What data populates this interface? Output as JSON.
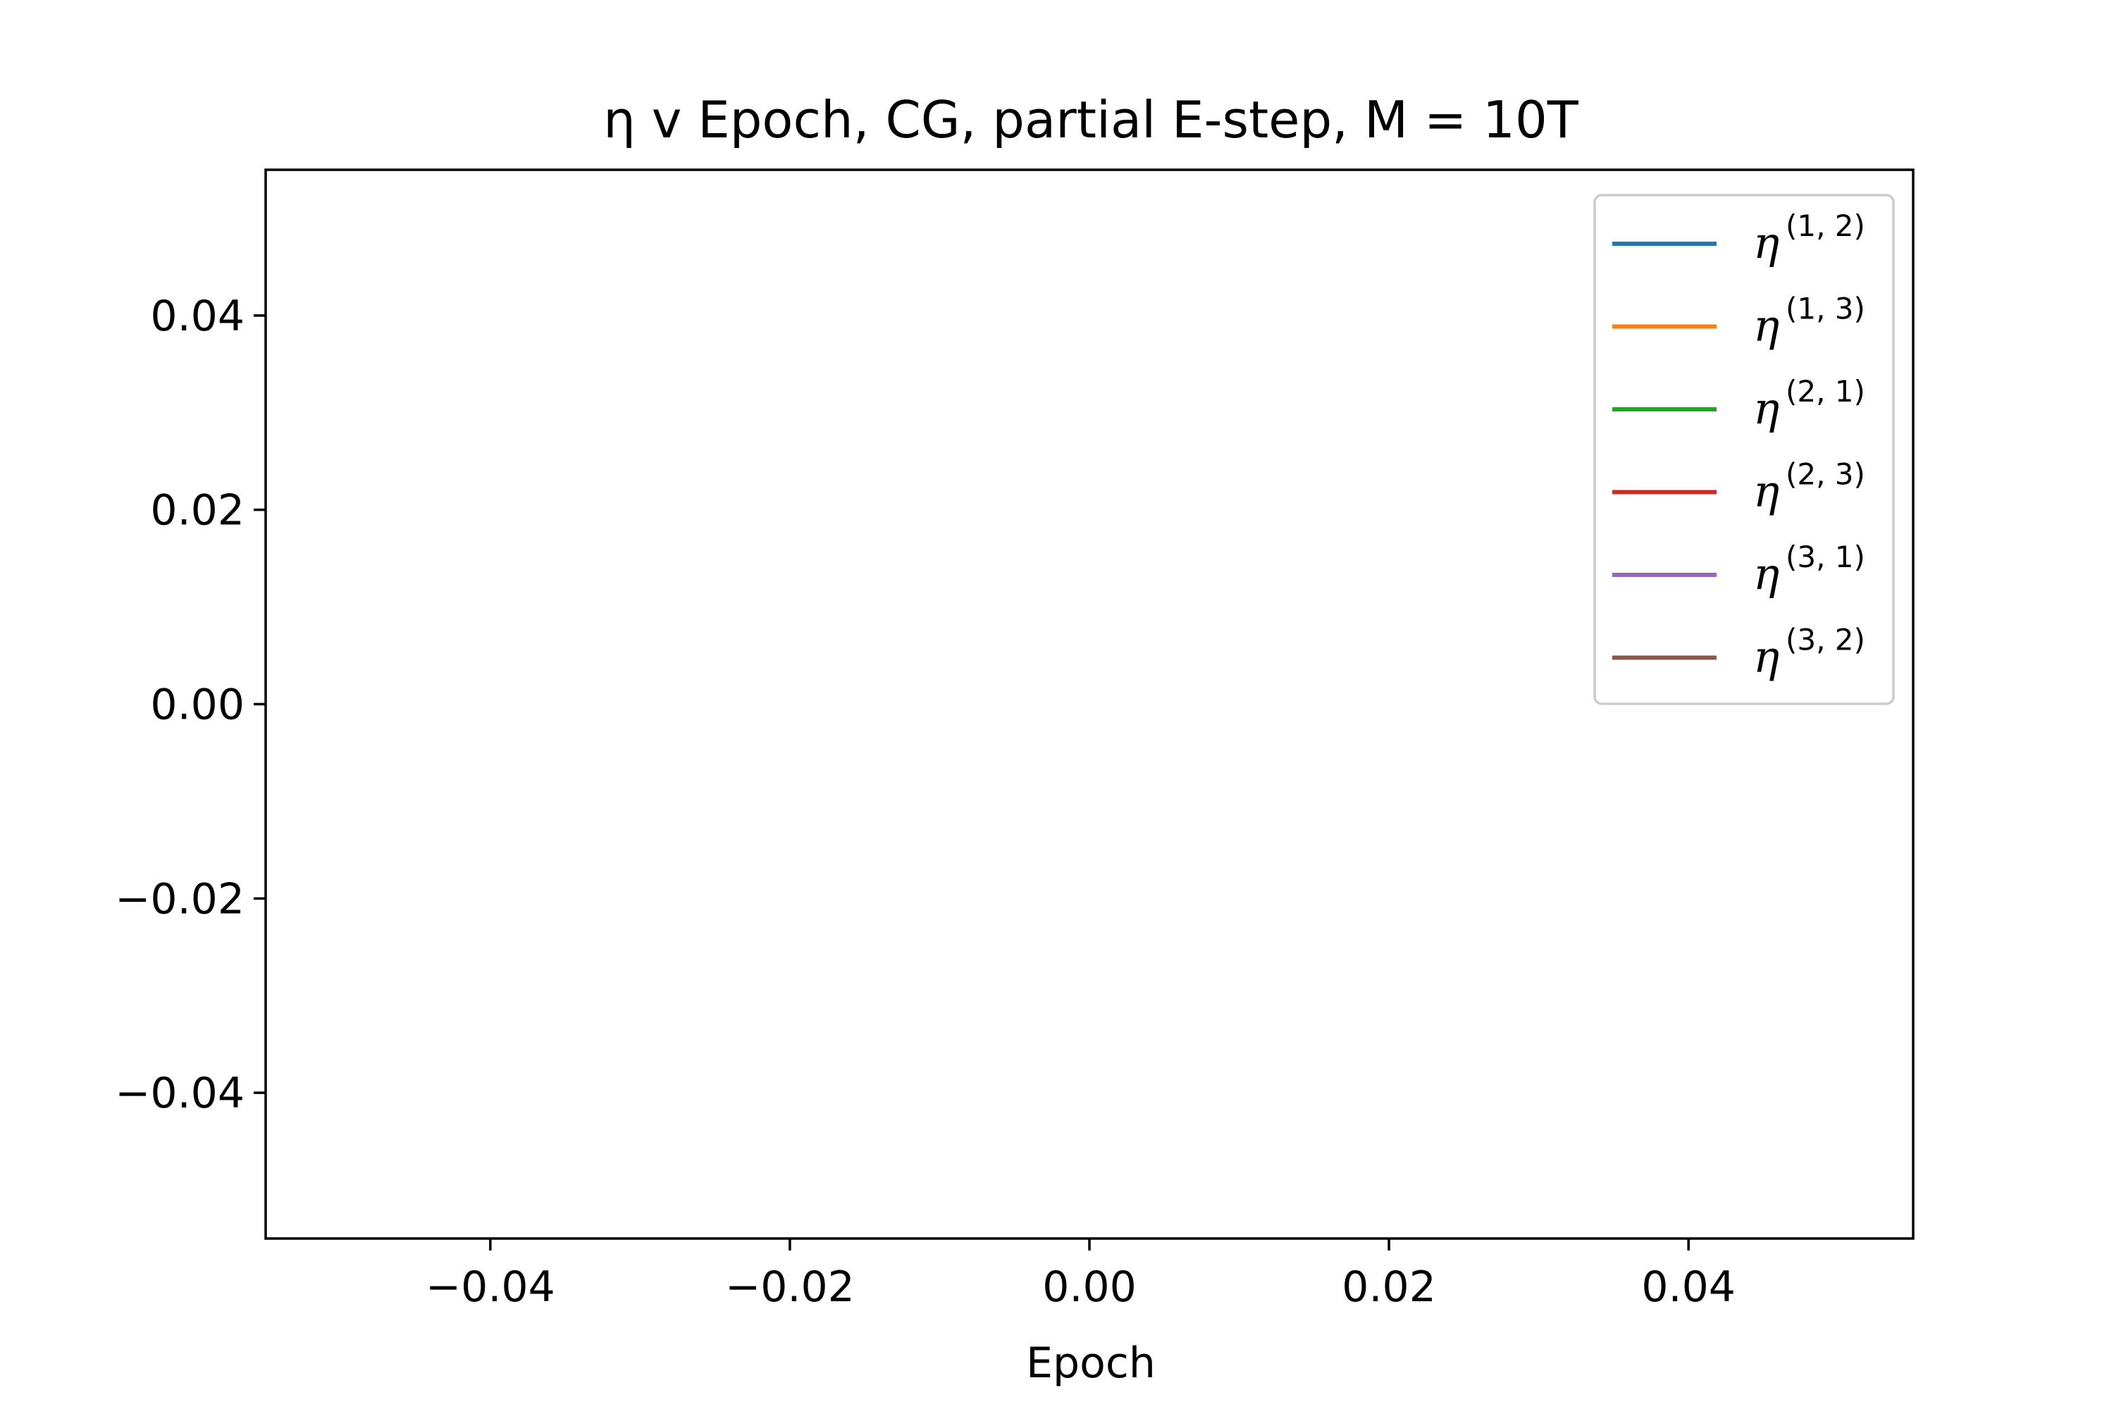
{
  "chart_data": {
    "type": "line",
    "title": "η v Epoch, CG, partial E-step, M = 10T",
    "xlabel": "Epoch",
    "ylabel": "",
    "xlim": [
      -0.055,
      0.055
    ],
    "ylim": [
      -0.055,
      0.055
    ],
    "x_ticks": [
      -0.04,
      -0.02,
      0.0,
      0.02,
      0.04
    ],
    "x_tick_labels": [
      "−0.04",
      "−0.02",
      "0.00",
      "0.02",
      "0.04"
    ],
    "y_ticks": [
      -0.04,
      -0.02,
      0.0,
      0.02,
      0.04
    ],
    "y_tick_labels": [
      "−0.04",
      "−0.02",
      "0.00",
      "0.02",
      "0.04"
    ],
    "grid": false,
    "legend_position": "top-right",
    "series": [
      {
        "name_base": "η",
        "name_sup": "(1, 2)",
        "color": "#1f77b4",
        "x": [],
        "y": []
      },
      {
        "name_base": "η",
        "name_sup": "(1, 3)",
        "color": "#ff7f0e",
        "x": [],
        "y": []
      },
      {
        "name_base": "η",
        "name_sup": "(2, 1)",
        "color": "#2ca02c",
        "x": [],
        "y": []
      },
      {
        "name_base": "η",
        "name_sup": "(2, 3)",
        "color": "#d62728",
        "x": [],
        "y": []
      },
      {
        "name_base": "η",
        "name_sup": "(3, 1)",
        "color": "#9467bd",
        "x": [],
        "y": []
      },
      {
        "name_base": "η",
        "name_sup": "(3, 2)",
        "color": "#8c564b",
        "x": [],
        "y": []
      }
    ]
  }
}
